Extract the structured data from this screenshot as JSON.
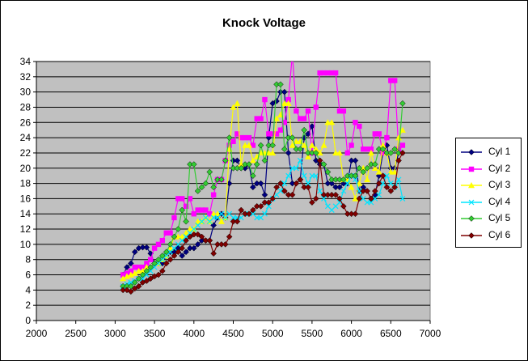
{
  "chart_data": {
    "type": "line",
    "title": "Knock Voltage",
    "xlabel": "",
    "ylabel": "",
    "xlim": [
      2000,
      7000
    ],
    "ylim": [
      0,
      34
    ],
    "xticks": [
      "2000",
      "2500",
      "3000",
      "3500",
      "4000",
      "4500",
      "5000",
      "5500",
      "6000",
      "6500",
      "7000"
    ],
    "yticks": [
      "0",
      "2",
      "4",
      "6",
      "8",
      "10",
      "12",
      "14",
      "16",
      "18",
      "20",
      "22",
      "24",
      "26",
      "28",
      "30",
      "32",
      "34"
    ],
    "grid": true,
    "legend_position": "right",
    "plot_background": "#c0c0c0",
    "series": [
      {
        "name": "Cyl 1",
        "color": "#000080",
        "marker": "diamond",
        "x": [
          3100,
          3150,
          3200,
          3250,
          3300,
          3350,
          3400,
          3450,
          3500,
          3550,
          3600,
          3650,
          3700,
          3750,
          3800,
          3850,
          3900,
          3950,
          4000,
          4050,
          4100,
          4150,
          4200,
          4250,
          4300,
          4350,
          4400,
          4450,
          4500,
          4550,
          4600,
          4650,
          4700,
          4750,
          4800,
          4850,
          4900,
          4950,
          5000,
          5050,
          5100,
          5150,
          5200,
          5250,
          5300,
          5350,
          5400,
          5450,
          5500,
          5550,
          5600,
          5650,
          5700,
          5750,
          5800,
          5850,
          5900,
          5950,
          6000,
          6050,
          6100,
          6150,
          6200,
          6250,
          6300,
          6350,
          6400,
          6450,
          6500,
          6550,
          6600,
          6650
        ],
        "y": [
          6,
          7,
          7.5,
          9,
          9.5,
          9.6,
          9.6,
          8.8,
          7.5,
          7.5,
          7.5,
          8.5,
          9,
          9,
          9.5,
          8.5,
          9,
          9.5,
          9.5,
          10,
          10.5,
          10.5,
          10.5,
          12.5,
          13.5,
          14,
          13.5,
          18,
          21,
          21,
          20,
          20,
          20.5,
          17.5,
          18,
          18,
          16.5,
          24,
          28.5,
          28.8,
          30,
          30,
          22,
          18,
          18,
          18.5,
          24,
          24.5,
          25.5,
          21,
          20.5,
          20.5,
          18,
          18,
          17.5,
          17.5,
          18,
          18,
          21,
          21,
          17,
          17.5,
          17,
          16,
          16.5,
          19,
          22,
          23,
          20,
          20,
          22,
          22
        ]
      },
      {
        "name": "Cyl 2",
        "color": "#ff00ff",
        "marker": "square",
        "x": [
          3100,
          3150,
          3200,
          3250,
          3300,
          3350,
          3400,
          3450,
          3500,
          3550,
          3600,
          3650,
          3700,
          3750,
          3800,
          3850,
          3900,
          3950,
          4000,
          4050,
          4100,
          4150,
          4200,
          4250,
          4300,
          4350,
          4400,
          4450,
          4500,
          4550,
          4600,
          4650,
          4700,
          4750,
          4800,
          4850,
          4900,
          4950,
          5000,
          5050,
          5100,
          5150,
          5200,
          5250,
          5300,
          5350,
          5400,
          5450,
          5500,
          5550,
          5600,
          5650,
          5700,
          5750,
          5800,
          5850,
          5900,
          5950,
          6000,
          6050,
          6100,
          6150,
          6200,
          6250,
          6300,
          6350,
          6400,
          6450,
          6500,
          6550,
          6600,
          6650
        ],
        "y": [
          6,
          6.2,
          6.5,
          7,
          7,
          7,
          7.5,
          8,
          9.5,
          10,
          10.5,
          11.5,
          11.5,
          13.5,
          16,
          16,
          15,
          16,
          14,
          14.5,
          14.5,
          14.5,
          14,
          16.5,
          18.5,
          18.5,
          21,
          23,
          23.5,
          24.5,
          24,
          24,
          24,
          23,
          26.5,
          26.5,
          29,
          24.5,
          24.5,
          24.5,
          25,
          26,
          29,
          35,
          27.5,
          26.5,
          26.5,
          27.5,
          22,
          28,
          32.5,
          32.5,
          32.5,
          32.5,
          32.5,
          27.5,
          27.5,
          22,
          23,
          26,
          25.5,
          22.5,
          22.5,
          22.5,
          24.5,
          24.5,
          22,
          24,
          31.5,
          31.5,
          22.5,
          23
        ]
      },
      {
        "name": "Cyl 3",
        "color": "#ffff00",
        "marker": "triangle",
        "x": [
          3100,
          3150,
          3200,
          3250,
          3300,
          3350,
          3400,
          3450,
          3500,
          3550,
          3600,
          3650,
          3700,
          3750,
          3800,
          3850,
          3900,
          3950,
          4000,
          4050,
          4100,
          4150,
          4200,
          4250,
          4300,
          4350,
          4400,
          4450,
          4500,
          4550,
          4600,
          4650,
          4700,
          4750,
          4800,
          4850,
          4900,
          4950,
          5000,
          5050,
          5100,
          5150,
          5200,
          5250,
          5300,
          5350,
          5400,
          5450,
          5500,
          5550,
          5600,
          5650,
          5700,
          5750,
          5800,
          5850,
          5900,
          5950,
          6000,
          6050,
          6100,
          6150,
          6200,
          6250,
          6300,
          6350,
          6400,
          6450,
          6500,
          6550,
          6600,
          6650
        ],
        "y": [
          5.5,
          5.8,
          6,
          6.2,
          6.5,
          6.5,
          7,
          7,
          7.5,
          7.5,
          8,
          8.5,
          9.5,
          11,
          11,
          11,
          11.5,
          12,
          12,
          13,
          13,
          13.5,
          13,
          14,
          14,
          13,
          13.5,
          22.5,
          28,
          28.5,
          20.5,
          23,
          23,
          21,
          21.5,
          22,
          22,
          22,
          22,
          26.5,
          27,
          28.5,
          28.5,
          23,
          23.5,
          23.5,
          23,
          21.5,
          23,
          22.5,
          22,
          23,
          26,
          26,
          22,
          22,
          18.5,
          18.5,
          17.5,
          16,
          18,
          20,
          18.5,
          22,
          20,
          19.5,
          23,
          22,
          19.5,
          19.5,
          24,
          25
        ]
      },
      {
        "name": "Cyl 4",
        "color": "#00e5ff",
        "marker": "cross",
        "x": [
          3100,
          3150,
          3200,
          3250,
          3300,
          3350,
          3400,
          3450,
          3500,
          3550,
          3600,
          3650,
          3700,
          3750,
          3800,
          3850,
          3900,
          3950,
          4000,
          4050,
          4100,
          4150,
          4200,
          4250,
          4300,
          4350,
          4400,
          4450,
          4500,
          4550,
          4600,
          4650,
          4700,
          4750,
          4800,
          4850,
          4900,
          4950,
          5000,
          5050,
          5100,
          5150,
          5200,
          5250,
          5300,
          5350,
          5400,
          5450,
          5500,
          5550,
          5600,
          5650,
          5700,
          5750,
          5800,
          5850,
          5900,
          5950,
          6000,
          6050,
          6100,
          6150,
          6200,
          6250,
          6300,
          6350,
          6400,
          6450,
          6500,
          6550,
          6600,
          6650
        ],
        "y": [
          4.5,
          4.8,
          5,
          5.2,
          5.5,
          5.5,
          6,
          6.5,
          7,
          7.5,
          8,
          8.5,
          9,
          9.5,
          10,
          10.5,
          11,
          11.5,
          12,
          12.5,
          13,
          13.5,
          13,
          13.5,
          13.5,
          14,
          13.5,
          14,
          13.5,
          13.5,
          13.5,
          14,
          14,
          14,
          13.5,
          13.5,
          14,
          15,
          16,
          16.5,
          17,
          18,
          19,
          20,
          20,
          21,
          19,
          18,
          19,
          19,
          17,
          16,
          15,
          14.5,
          15,
          15.5,
          17,
          18,
          19,
          18.5,
          17,
          16,
          15.5,
          15.5,
          16,
          16.5,
          18,
          19,
          18,
          17.5,
          18.5,
          16
        ]
      },
      {
        "name": "Cyl 5",
        "color": "#33cc33",
        "marker": "diamond",
        "x": [
          3100,
          3150,
          3200,
          3250,
          3300,
          3350,
          3400,
          3450,
          3500,
          3550,
          3600,
          3650,
          3700,
          3750,
          3800,
          3850,
          3900,
          3950,
          4000,
          4050,
          4100,
          4150,
          4200,
          4250,
          4300,
          4350,
          4400,
          4450,
          4500,
          4550,
          4600,
          4650,
          4700,
          4750,
          4800,
          4850,
          4900,
          4950,
          5000,
          5050,
          5100,
          5150,
          5200,
          5250,
          5300,
          5350,
          5400,
          5450,
          5500,
          5550,
          5600,
          5650,
          5700,
          5750,
          5800,
          5850,
          5900,
          5950,
          6000,
          6050,
          6100,
          6150,
          6200,
          6250,
          6300,
          6350,
          6400,
          6450,
          6500,
          6550,
          6600,
          6650
        ],
        "y": [
          4.5,
          4.5,
          4.5,
          5,
          5.5,
          6,
          6.5,
          7,
          7.5,
          8,
          8.5,
          9,
          10,
          11,
          12,
          14.5,
          13,
          20.5,
          20.5,
          17,
          17.5,
          18,
          19.5,
          17.5,
          18.5,
          18.5,
          21,
          24,
          20,
          20,
          20,
          20.5,
          20.5,
          19,
          20.5,
          23,
          21,
          23,
          23,
          31,
          31,
          22.5,
          24,
          24,
          22.5,
          22.5,
          25,
          22,
          22,
          22,
          21,
          20.5,
          19.5,
          18.5,
          18.5,
          18.5,
          18.5,
          19,
          19,
          19,
          20,
          19.5,
          20,
          20.5,
          20.5,
          22.5,
          22.5,
          22,
          22,
          22.5,
          22,
          28.5
        ]
      },
      {
        "name": "Cyl 6",
        "color": "#800000",
        "marker": "diamond",
        "x": [
          3100,
          3150,
          3200,
          3250,
          3300,
          3350,
          3400,
          3450,
          3500,
          3550,
          3600,
          3650,
          3700,
          3750,
          3800,
          3850,
          3900,
          3950,
          4000,
          4050,
          4100,
          4150,
          4200,
          4250,
          4300,
          4350,
          4400,
          4450,
          4500,
          4550,
          4600,
          4650,
          4700,
          4750,
          4800,
          4850,
          4900,
          4950,
          5000,
          5050,
          5100,
          5150,
          5200,
          5250,
          5300,
          5350,
          5400,
          5450,
          5500,
          5550,
          5600,
          5650,
          5700,
          5750,
          5800,
          5850,
          5900,
          5950,
          6000,
          6050,
          6100,
          6150,
          6200,
          6250,
          6300,
          6350,
          6400,
          6450,
          6500,
          6550,
          6600,
          6650
        ],
        "y": [
          4,
          4,
          3.8,
          4.2,
          4.5,
          5,
          5.2,
          5.5,
          5.8,
          6,
          6.5,
          7.5,
          8,
          8.5,
          9,
          9.5,
          10.5,
          11,
          11.3,
          11.3,
          11,
          10.5,
          10.5,
          8.8,
          10,
          10,
          10,
          11,
          13,
          13,
          14.5,
          14,
          14,
          14.5,
          15,
          15,
          15.5,
          15.5,
          16,
          17.5,
          18,
          17,
          16.5,
          16.5,
          18,
          18.5,
          17.5,
          17.5,
          15.5,
          16,
          21,
          16.5,
          16.5,
          16.5,
          16.5,
          16,
          15,
          14,
          14,
          14,
          16,
          17,
          17,
          16,
          17,
          18,
          19,
          17.5,
          17,
          17.5,
          21,
          22
        ]
      }
    ]
  }
}
